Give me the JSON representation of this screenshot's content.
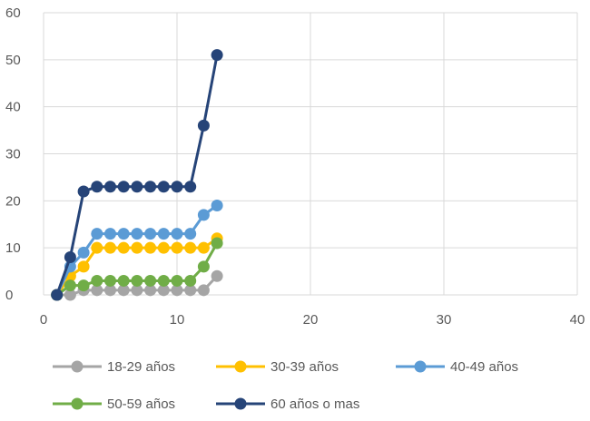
{
  "chart_data": {
    "type": "scatter",
    "xlim": [
      0,
      40
    ],
    "ylim": [
      0,
      60
    ],
    "x_ticks": [
      "0",
      "10",
      "20",
      "30",
      "40"
    ],
    "y_ticks": [
      "0",
      "10",
      "20",
      "30",
      "40",
      "50",
      "60"
    ],
    "grid": true,
    "legend_position": "bottom",
    "series": [
      {
        "name": "18-29 años",
        "color": "#A5A5A5",
        "points": [
          [
            1,
            0
          ],
          [
            2,
            0
          ],
          [
            3,
            1
          ],
          [
            4,
            1
          ],
          [
            5,
            1
          ],
          [
            6,
            1
          ],
          [
            7,
            1
          ],
          [
            8,
            1
          ],
          [
            9,
            1
          ],
          [
            10,
            1
          ],
          [
            11,
            1
          ],
          [
            12,
            1
          ],
          [
            13,
            4
          ]
        ]
      },
      {
        "name": "30-39 años",
        "color": "#FFC000",
        "points": [
          [
            1,
            0
          ],
          [
            2,
            4
          ],
          [
            3,
            6
          ],
          [
            4,
            10
          ],
          [
            5,
            10
          ],
          [
            6,
            10
          ],
          [
            7,
            10
          ],
          [
            8,
            10
          ],
          [
            9,
            10
          ],
          [
            10,
            10
          ],
          [
            11,
            10
          ],
          [
            12,
            10
          ],
          [
            13,
            12
          ]
        ]
      },
      {
        "name": "40-49 años",
        "color": "#5B9BD5",
        "points": [
          [
            1,
            0
          ],
          [
            2,
            6
          ],
          [
            3,
            9
          ],
          [
            4,
            13
          ],
          [
            5,
            13
          ],
          [
            6,
            13
          ],
          [
            7,
            13
          ],
          [
            8,
            13
          ],
          [
            9,
            13
          ],
          [
            10,
            13
          ],
          [
            11,
            13
          ],
          [
            12,
            17
          ],
          [
            13,
            19
          ]
        ]
      },
      {
        "name": "50-59 años",
        "color": "#70AD47",
        "points": [
          [
            1,
            0
          ],
          [
            2,
            2
          ],
          [
            3,
            2
          ],
          [
            4,
            3
          ],
          [
            5,
            3
          ],
          [
            6,
            3
          ],
          [
            7,
            3
          ],
          [
            8,
            3
          ],
          [
            9,
            3
          ],
          [
            10,
            3
          ],
          [
            11,
            3
          ],
          [
            12,
            6
          ],
          [
            13,
            11
          ]
        ]
      },
      {
        "name": "60 años o mas",
        "color": "#264478",
        "points": [
          [
            1,
            0
          ],
          [
            2,
            8
          ],
          [
            3,
            22
          ],
          [
            4,
            23
          ],
          [
            5,
            23
          ],
          [
            6,
            23
          ],
          [
            7,
            23
          ],
          [
            8,
            23
          ],
          [
            9,
            23
          ],
          [
            10,
            23
          ],
          [
            11,
            23
          ],
          [
            12,
            36
          ],
          [
            13,
            51
          ]
        ]
      }
    ]
  }
}
